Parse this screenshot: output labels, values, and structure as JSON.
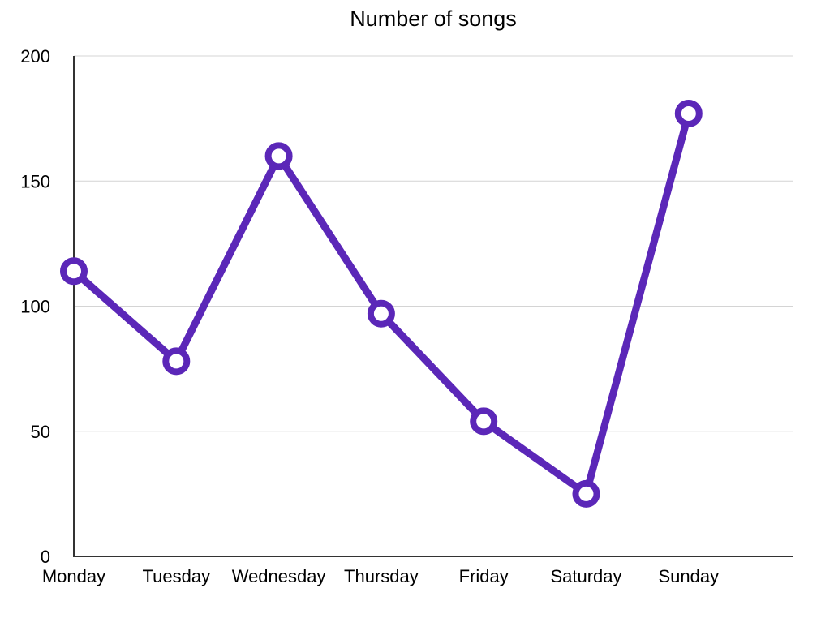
{
  "chart_data": {
    "type": "line",
    "title": "Number of songs",
    "xlabel": "",
    "ylabel": "",
    "categories": [
      "Monday",
      "Tuesday",
      "Wednesday",
      "Thursday",
      "Friday",
      "Saturday",
      "Sunday"
    ],
    "series": [
      {
        "values": [
          114,
          78,
          160,
          97,
          54,
          25,
          177
        ],
        "color": "#5b27b8"
      }
    ],
    "ylim": [
      0,
      200
    ],
    "yticks": [
      0,
      50,
      100,
      150,
      200
    ],
    "grid": true,
    "legend": "none",
    "marker": "hollow-circle"
  }
}
